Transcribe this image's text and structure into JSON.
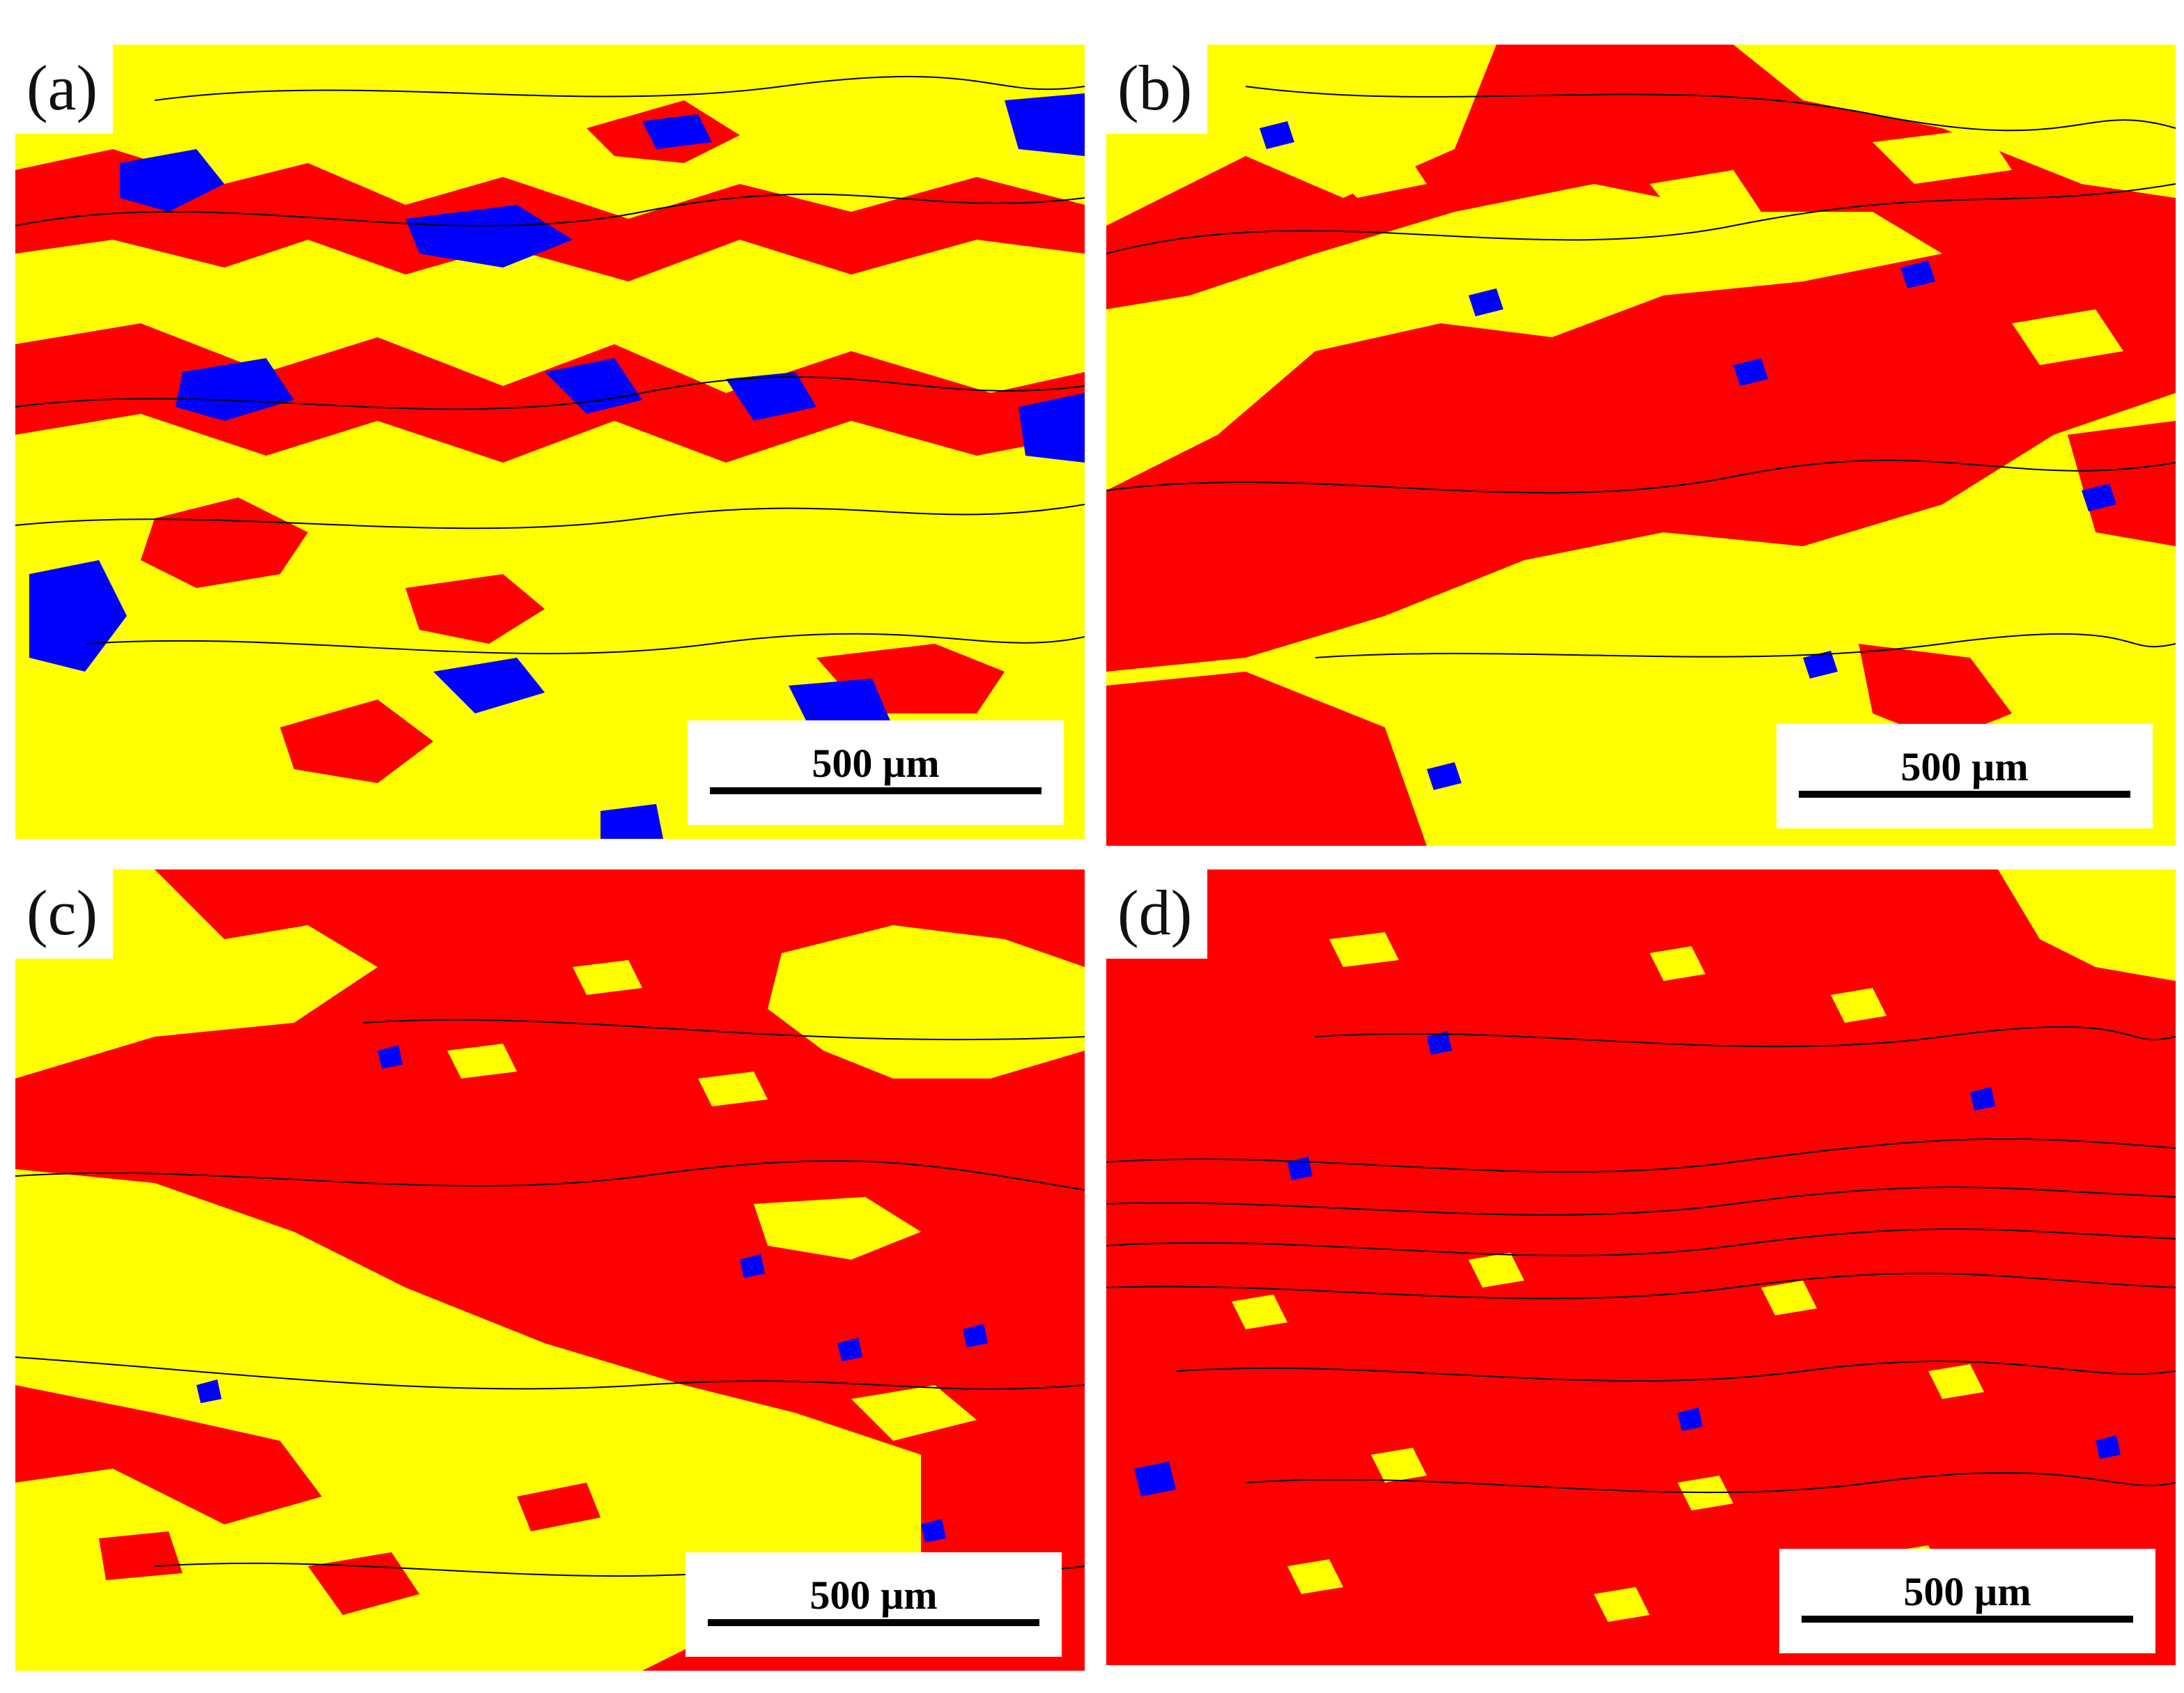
{
  "colors": {
    "yellow": "#ffff00",
    "red": "#ff0000",
    "blue": "#0000ff",
    "boundary": "#000000"
  },
  "panels": [
    {
      "label": "(a)",
      "scale": "500 µm",
      "base": "yellow"
    },
    {
      "label": "(b)",
      "scale": "500 µm",
      "base": "yellow"
    },
    {
      "label": "(c)",
      "scale": "500 µm",
      "base": "red"
    },
    {
      "label": "(d)",
      "scale": "500 µm",
      "base": "red"
    }
  ]
}
